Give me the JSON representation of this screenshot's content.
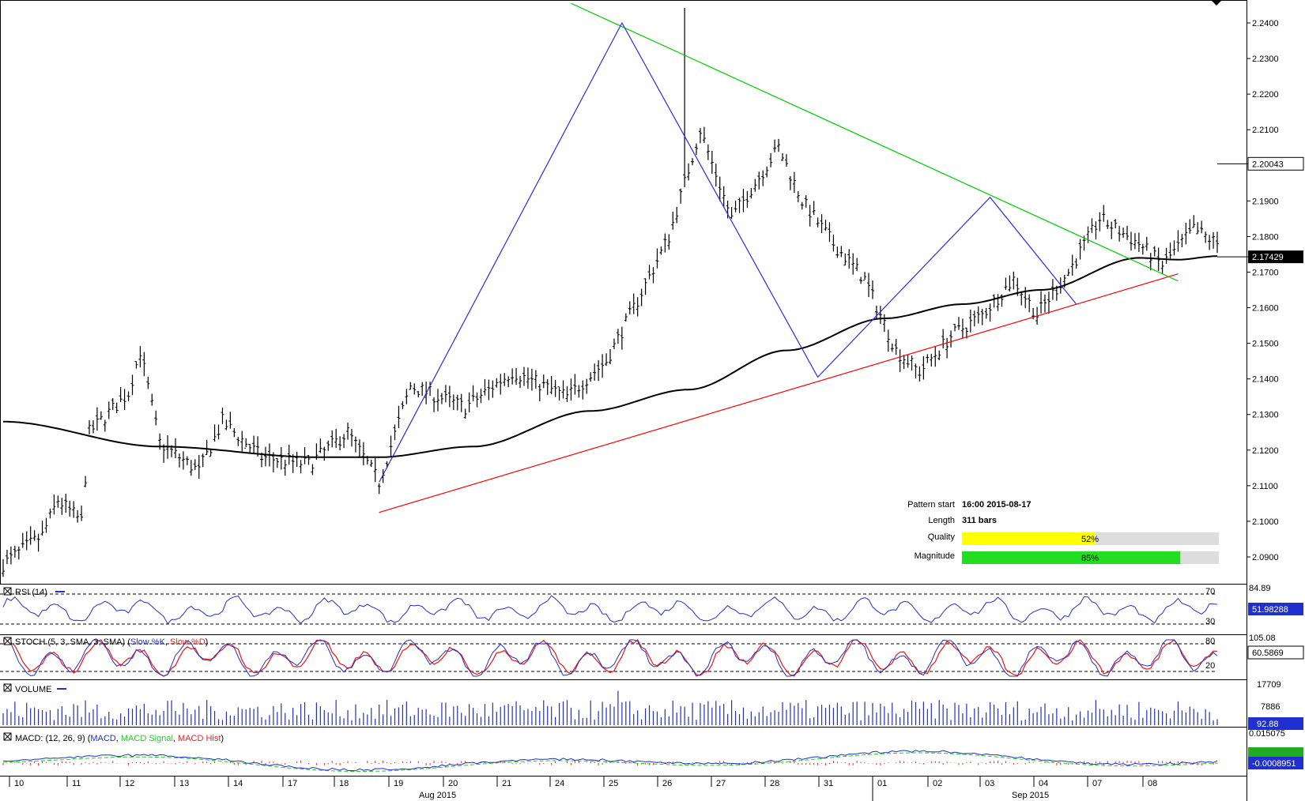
{
  "colors": {
    "price_bar": "#000000",
    "ma": "#000000",
    "pattern_upper": "#00cc00",
    "pattern_lower": "#ff0000",
    "zigzag": "#2a2ae6",
    "rsi": "#1f2fd0",
    "stoch_k": "#1f2fd0",
    "stoch_d": "#ee2222",
    "volume": "#1f2fd0",
    "macd": "#1f2fd0",
    "macd_signal": "#22cc22",
    "macd_hist": "#ee2222",
    "quality_fill": "#ffff00",
    "magnitude_fill": "#22dd22",
    "bar_bg": "#dddddd",
    "current_price_bg": "#000000",
    "ma_value_bg": "#000000",
    "rsi_value_bg": "#1f2fd0",
    "volume_value_bg": "#1f2fd0",
    "macd_value_bg": "#22aa22"
  },
  "chart_data": [
    {
      "type": "ohlc",
      "panel": "price",
      "yticks": [
        "2.2400",
        "2.2300",
        "2.2200",
        "2.2100",
        "2.1900",
        "2.1800",
        "2.1700",
        "2.1600",
        "2.1500",
        "2.1400",
        "2.1300",
        "2.1200",
        "2.1100",
        "2.1000",
        "2.0900"
      ],
      "ylim": [
        2.0845,
        2.2455
      ],
      "current_price": "2.20043",
      "ma_value": "2.17429",
      "bar_count": 311,
      "anchors": [
        {
          "bar": 0,
          "price": 2.088
        },
        {
          "bar": 10,
          "price": 2.096
        },
        {
          "bar": 14,
          "price": 2.106
        },
        {
          "bar": 20,
          "price": 2.1
        },
        {
          "bar": 22,
          "price": 2.125
        },
        {
          "bar": 32,
          "price": 2.136
        },
        {
          "bar": 35,
          "price": 2.148
        },
        {
          "bar": 40,
          "price": 2.122
        },
        {
          "bar": 50,
          "price": 2.114
        },
        {
          "bar": 56,
          "price": 2.128
        },
        {
          "bar": 66,
          "price": 2.118
        },
        {
          "bar": 78,
          "price": 2.116
        },
        {
          "bar": 88,
          "price": 2.125
        },
        {
          "bar": 96,
          "price": 2.111
        },
        {
          "bar": 104,
          "price": 2.138
        },
        {
          "bar": 118,
          "price": 2.132
        },
        {
          "bar": 130,
          "price": 2.142
        },
        {
          "bar": 144,
          "price": 2.135
        },
        {
          "bar": 154,
          "price": 2.145
        },
        {
          "bar": 162,
          "price": 2.162
        },
        {
          "bar": 170,
          "price": 2.18
        },
        {
          "bar": 174,
          "price": 2.195
        },
        {
          "bar": 178,
          "price": 2.21
        },
        {
          "bar": 186,
          "price": 2.185
        },
        {
          "bar": 192,
          "price": 2.195
        },
        {
          "bar": 198,
          "price": 2.205
        },
        {
          "bar": 204,
          "price": 2.19
        },
        {
          "bar": 212,
          "price": 2.178
        },
        {
          "bar": 220,
          "price": 2.168
        },
        {
          "bar": 228,
          "price": 2.148
        },
        {
          "bar": 234,
          "price": 2.142
        },
        {
          "bar": 242,
          "price": 2.152
        },
        {
          "bar": 250,
          "price": 2.158
        },
        {
          "bar": 258,
          "price": 2.168
        },
        {
          "bar": 264,
          "price": 2.158
        },
        {
          "bar": 272,
          "price": 2.17
        },
        {
          "bar": 280,
          "price": 2.185
        },
        {
          "bar": 290,
          "price": 2.178
        },
        {
          "bar": 296,
          "price": 2.172
        },
        {
          "bar": 304,
          "price": 2.182
        },
        {
          "bar": 310,
          "price": 2.178
        }
      ]
    },
    {
      "type": "line",
      "panel": "rsi",
      "name": "RSI (14)",
      "levels": [
        "70",
        "30"
      ],
      "scale_label": "84.89",
      "value": "51.98288"
    },
    {
      "type": "line",
      "panel": "stoch",
      "name": "STOCH (5, 3, SMA, 3, SMA)",
      "series": [
        "Slow %K",
        "Slow %D"
      ],
      "levels": [
        "80",
        "20"
      ],
      "scale_label": "105.08",
      "value": "60.5869"
    },
    {
      "type": "bar",
      "panel": "volume",
      "name": "VOLUME",
      "scale_labels": [
        "17709",
        "7886"
      ],
      "value": "92.88"
    },
    {
      "type": "line",
      "panel": "macd",
      "name": "MACD: (12, 26, 9)",
      "series": [
        "MACD",
        "MACD Signal",
        "MACD Hist"
      ],
      "scale_label": "0.015075",
      "value": "-0.0008951"
    }
  ],
  "x_axis": {
    "day_labels": [
      "10",
      "11",
      "12",
      "13",
      "14",
      "17",
      "18",
      "19",
      "20",
      "21",
      "24",
      "25",
      "26",
      "27",
      "28",
      "31",
      "01",
      "02",
      "03",
      "04",
      "07",
      "08"
    ],
    "month_labels": [
      "Aug 2015",
      "Sep 2015"
    ]
  },
  "pattern_info": {
    "pattern_start_label": "Pattern start",
    "pattern_start_value": "16:00 2015-08-17",
    "length_label": "Length",
    "length_value": "311 bars",
    "quality_label": "Quality",
    "quality_value": "52%",
    "quality": 0.52,
    "magnitude_label": "Magnitude",
    "magnitude_value": "85%",
    "magnitude": 0.85
  },
  "panels": {
    "rsi_title": "RSI (14)",
    "stoch_title_prefix": "STOCH (5, 3, SMA, 3, SMA) (",
    "stoch_k": "Slow %K",
    "stoch_d": "Slow %D",
    "volume_title": "VOLUME",
    "macd_title_prefix": "MACD: (12, 26, 9) (",
    "macd_line": "MACD",
    "macd_signal": "MACD Signal",
    "macd_hist": "MACD Hist"
  }
}
